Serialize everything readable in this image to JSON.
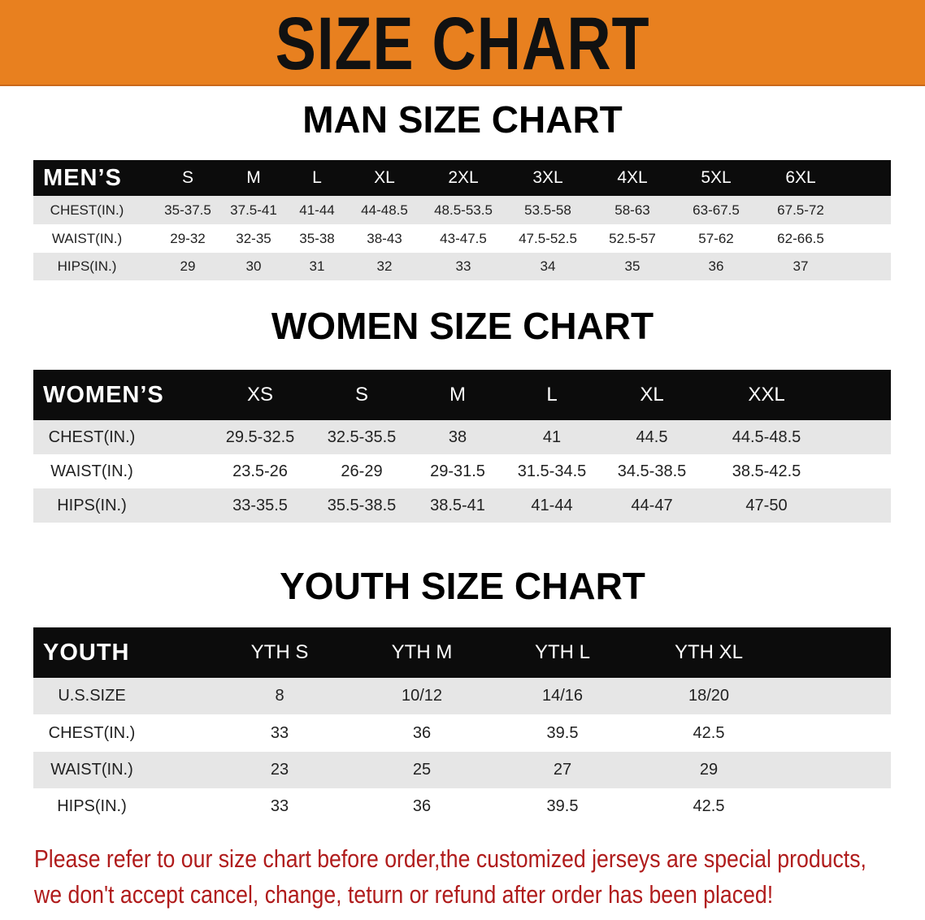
{
  "banner": {
    "title": "SIZE CHART",
    "color": "#e8801f"
  },
  "men": {
    "title": "MAN SIZE CHART",
    "header": [
      "MEN’S",
      "S",
      "M",
      "L",
      "XL",
      "2XL",
      "3XL",
      "4XL",
      "5XL",
      "6XL"
    ],
    "rows": [
      [
        "CHEST(IN.)",
        "35-37.5",
        "37.5-41",
        "41-44",
        "44-48.5",
        "48.5-53.5",
        "53.5-58",
        "58-63",
        "63-67.5",
        "67.5-72"
      ],
      [
        "WAIST(IN.)",
        "29-32",
        "32-35",
        "35-38",
        "38-43",
        "43-47.5",
        "47.5-52.5",
        "52.5-57",
        "57-62",
        "62-66.5"
      ],
      [
        "HIPS(IN.)",
        "29",
        "30",
        "31",
        "32",
        "33",
        "34",
        "35",
        "36",
        "37"
      ]
    ]
  },
  "women": {
    "title": "WOMEN SIZE CHART",
    "header": [
      "WOMEN’S",
      "XS",
      "S",
      "M",
      "L",
      "XL",
      "XXL"
    ],
    "rows": [
      [
        "CHEST(IN.)",
        "29.5-32.5",
        "32.5-35.5",
        "38",
        "41",
        "44.5",
        "44.5-48.5"
      ],
      [
        "WAIST(IN.)",
        "23.5-26",
        "26-29",
        "29-31.5",
        "31.5-34.5",
        "34.5-38.5",
        "38.5-42.5"
      ],
      [
        "HIPS(IN.)",
        "33-35.5",
        "35.5-38.5",
        "38.5-41",
        "41-44",
        "44-47",
        "47-50"
      ]
    ]
  },
  "youth": {
    "title": "YOUTH SIZE CHART",
    "header": [
      "YOUTH",
      "YTH S",
      "YTH M",
      "YTH L",
      "YTH XL"
    ],
    "rows": [
      [
        "U.S.SIZE",
        "8",
        "10/12",
        "14/16",
        "18/20"
      ],
      [
        "CHEST(IN.)",
        "33",
        "36",
        "39.5",
        "42.5"
      ],
      [
        "WAIST(IN.)",
        "23",
        "25",
        "27",
        "29"
      ],
      [
        "HIPS(IN.)",
        "33",
        "36",
        "39.5",
        "42.5"
      ]
    ]
  },
  "notice": {
    "line1": "Please refer to our size chart before order,the customized jerseys are special products,",
    "line2": "we don't accept cancel, change, teturn or refund after order has been placed!",
    "color": "#b01c1c"
  }
}
